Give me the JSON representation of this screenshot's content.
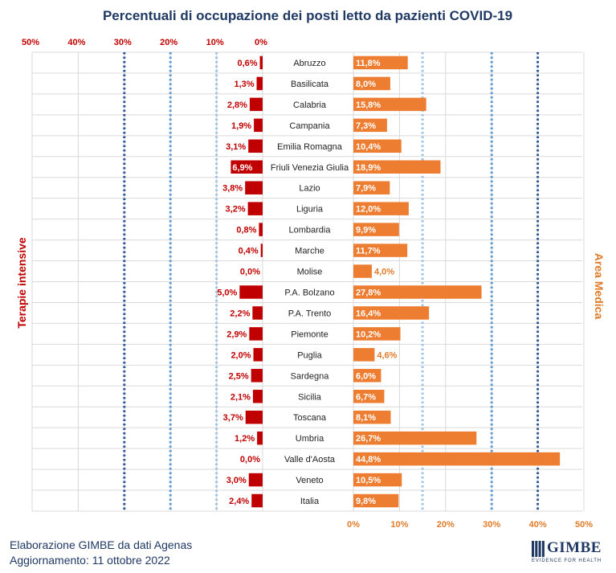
{
  "chart_data": {
    "type": "bar",
    "title": "Percentuali di occupazione dei posti letto da pazienti COVID-19",
    "left_axis_label": "Terapie intensive",
    "right_axis_label": "Area Medica",
    "left_ticks": [
      "50%",
      "40%",
      "30%",
      "20%",
      "10%",
      "0%"
    ],
    "right_ticks": [
      "0%",
      "10%",
      "20%",
      "30%",
      "40%",
      "50%"
    ],
    "xlim": [
      0,
      50
    ],
    "legend": "none",
    "categories": [
      "Abruzzo",
      "Basilicata",
      "Calabria",
      "Campania",
      "Emilia Romagna",
      "Friuli Venezia Giulia",
      "Lazio",
      "Liguria",
      "Lombardia",
      "Marche",
      "Molise",
      "P.A. Bolzano",
      "P.A. Trento",
      "Piemonte",
      "Puglia",
      "Sardegna",
      "Sicilia",
      "Toscana",
      "Umbria",
      "Valle d'Aosta",
      "Veneto",
      "Italia"
    ],
    "series": [
      {
        "values": [
          0.6,
          1.3,
          2.8,
          1.9,
          3.1,
          6.9,
          3.8,
          3.2,
          0.8,
          0.4,
          0.0,
          5.0,
          2.2,
          2.9,
          2.0,
          2.5,
          2.1,
          3.7,
          1.2,
          0.0,
          3.0,
          2.4
        ],
        "labels": [
          "0,6%",
          "1,3%",
          "2,8%",
          "1,9%",
          "3,1%",
          "6,9%",
          "3,8%",
          "3,2%",
          "0,8%",
          "0,4%",
          "0,0%",
          "5,0%",
          "2,2%",
          "2,9%",
          "2,0%",
          "2,5%",
          "2,1%",
          "3,7%",
          "1,2%",
          "0,0%",
          "3,0%",
          "2,4%"
        ],
        "color": "#c00000",
        "side": "left"
      },
      {
        "values": [
          11.8,
          8.0,
          15.8,
          7.3,
          10.4,
          18.9,
          7.9,
          12.0,
          9.9,
          11.7,
          4.0,
          27.8,
          16.4,
          10.2,
          4.6,
          6.0,
          6.7,
          8.1,
          26.7,
          44.8,
          10.5,
          9.8
        ],
        "labels": [
          "11,8%",
          "8,0%",
          "15,8%",
          "7,3%",
          "10,4%",
          "18,9%",
          "7,9%",
          "12,0%",
          "9,9%",
          "11,7%",
          "4,0%",
          "27,8%",
          "16,4%",
          "10,2%",
          "4,6%",
          "6,0%",
          "6,7%",
          "8,1%",
          "26,7%",
          "44,8%",
          "10,5%",
          "9,8%"
        ],
        "color": "#ed7d31",
        "side": "right"
      }
    ],
    "thresholds_left": [
      10,
      20,
      30
    ],
    "thresholds_right": [
      15,
      30,
      40
    ],
    "threshold_colors": [
      "#9dc3e6",
      "#5b9bd5",
      "#2e5597"
    ]
  },
  "footer": {
    "line1": "Elaborazione GIMBE da dati Agenas",
    "line2": "Aggiornamento: 11 ottobre 2022"
  },
  "logo": {
    "name": "GIMBE",
    "tagline": "EVIDENCE FOR HEALTH",
    "color": "#1f3864"
  }
}
